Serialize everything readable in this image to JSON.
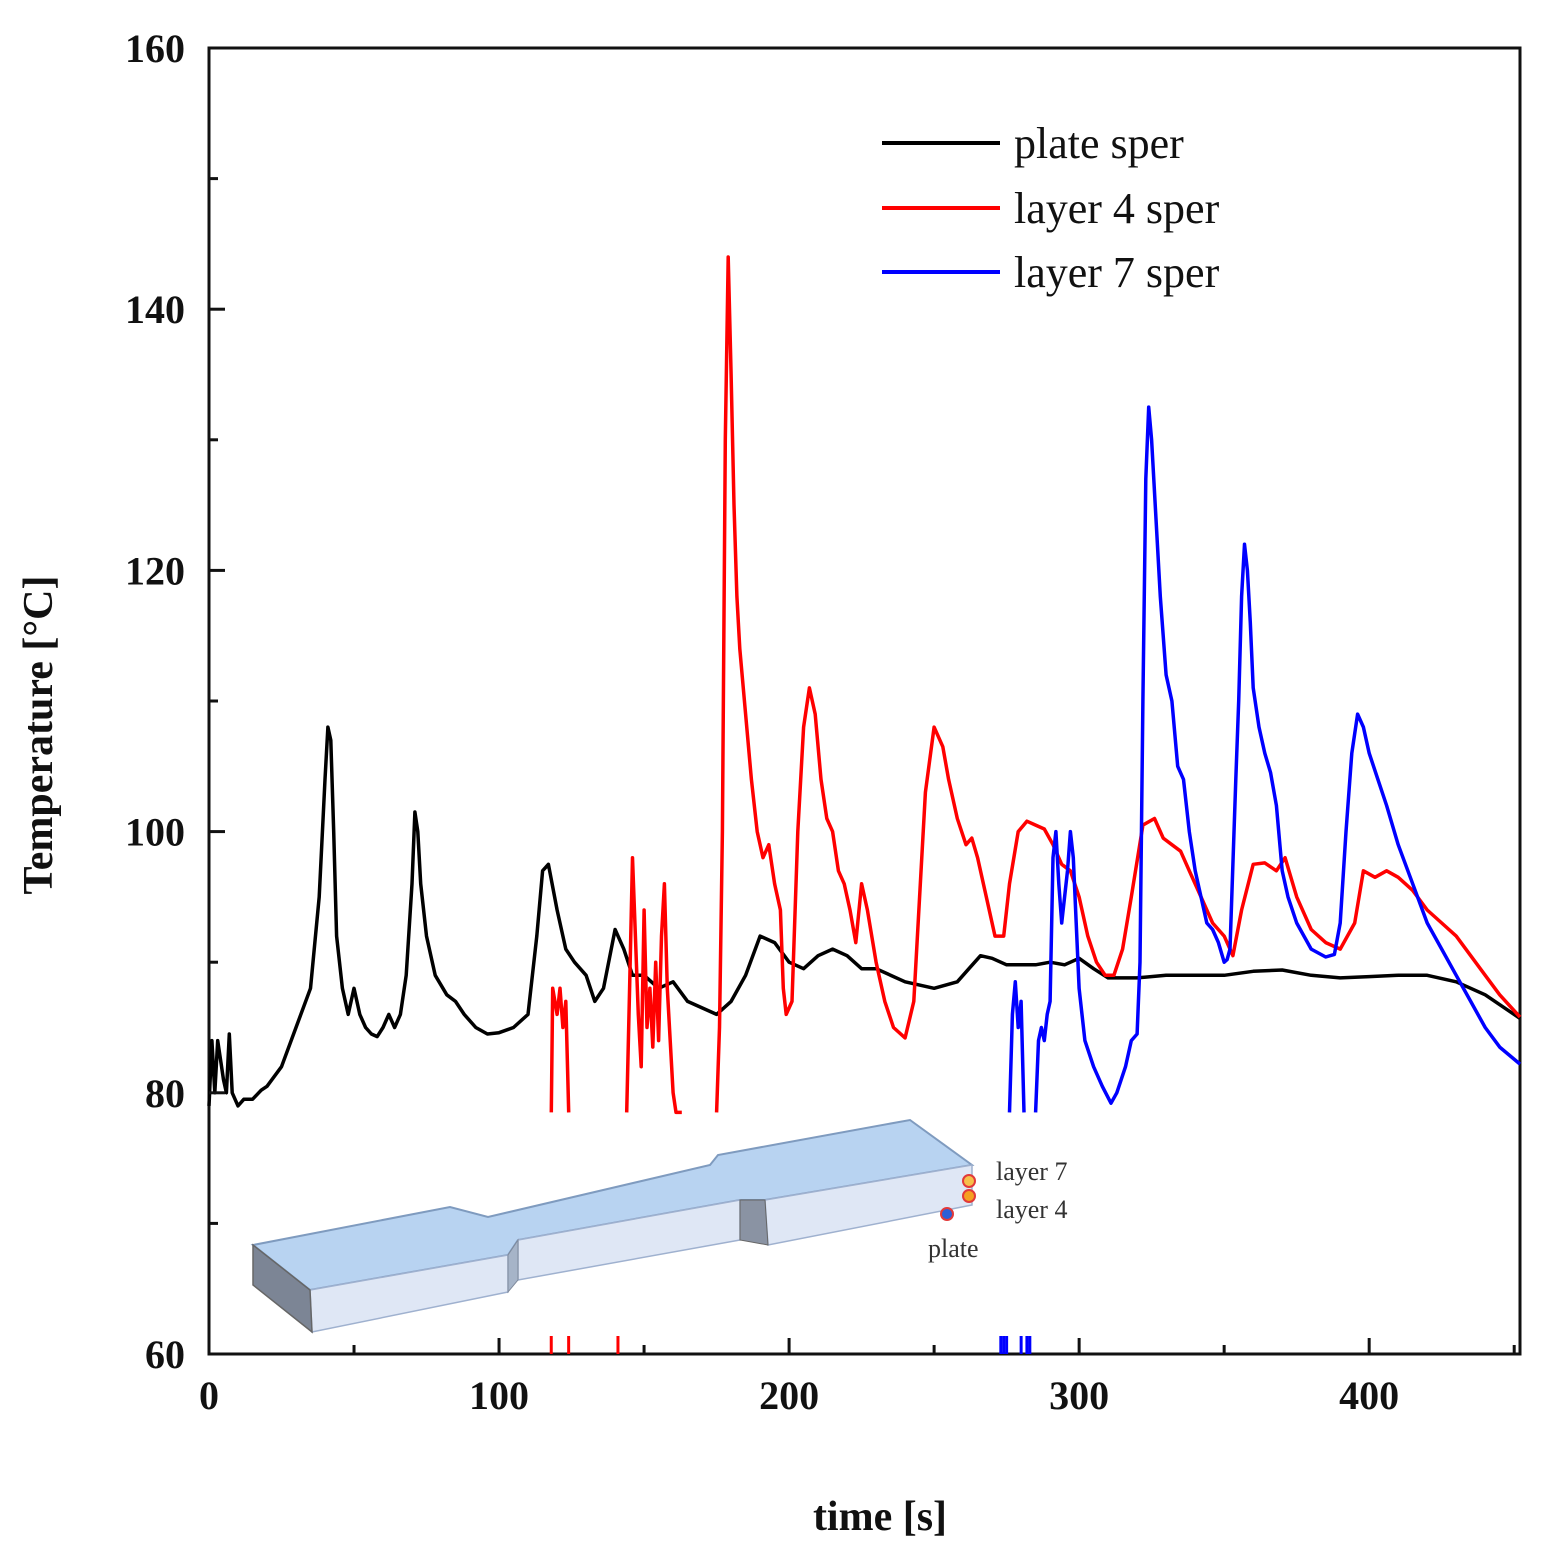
{
  "chart_data": {
    "type": "line",
    "title": "",
    "xlabel": "time [s]",
    "ylabel": "Temperature [°C]",
    "xlim": [
      0,
      452
    ],
    "ylim": [
      60,
      160
    ],
    "xticks": [
      0,
      100,
      200,
      300,
      400
    ],
    "yticks": [
      60,
      80,
      100,
      120,
      140,
      160
    ],
    "grid": false,
    "legend_position": "top-right",
    "series": [
      {
        "name": "plate sper",
        "color": "#000000",
        "x": [
          0,
          1,
          2,
          3,
          5,
          6,
          7,
          8,
          10,
          12,
          15,
          18,
          20,
          25,
          30,
          35,
          38,
          40,
          41,
          42,
          43,
          44,
          46,
          48,
          50,
          52,
          54,
          56,
          58,
          60,
          62,
          64,
          66,
          68,
          70,
          71,
          72,
          73,
          75,
          78,
          82,
          85,
          88,
          92,
          96,
          100,
          105,
          110,
          113,
          115,
          117,
          120,
          123,
          126,
          130,
          133,
          136,
          140,
          143,
          146,
          150,
          155,
          160,
          165,
          170,
          175,
          180,
          185,
          190,
          195,
          200,
          205,
          210,
          215,
          220,
          225,
          230,
          240,
          250,
          258,
          262,
          266,
          270,
          275,
          280,
          285,
          290,
          295,
          300,
          305,
          310,
          320,
          330,
          340,
          350,
          360,
          370,
          380,
          390,
          400,
          410,
          420,
          430,
          440,
          452
        ],
        "y": [
          79,
          84,
          80,
          84,
          81,
          80,
          84.5,
          80,
          79,
          79.5,
          79.5,
          80.2,
          80.5,
          82,
          85,
          88,
          95,
          104,
          108,
          107,
          100,
          92,
          88,
          86,
          88,
          86,
          85,
          84.5,
          84.3,
          85,
          86,
          85,
          86,
          89,
          96,
          101.5,
          100,
          96,
          92,
          89,
          87.5,
          87,
          86,
          85,
          84.5,
          84.6,
          85,
          86,
          92,
          97,
          97.5,
          94,
          91,
          90,
          89,
          87,
          88,
          92.5,
          91,
          89,
          89,
          88,
          88.5,
          87,
          86.5,
          86,
          87,
          89,
          92,
          91.5,
          90,
          89.5,
          90.5,
          91,
          90.5,
          89.5,
          89.5,
          88.5,
          88,
          88.5,
          89.5,
          90.5,
          90.3,
          89.8,
          89.8,
          89.8,
          90,
          89.8,
          90.3,
          89.5,
          88.8,
          88.8,
          89,
          89,
          89,
          89.3,
          89.4,
          89,
          88.8,
          88.9,
          89,
          89,
          88.5,
          87.5,
          85.7
        ]
      },
      {
        "name": "layer 4 sper",
        "color": "#ff0000",
        "segments": [
          {
            "x": [
              118,
              118.5,
              120,
              121,
              122,
              123,
              124
            ],
            "y": [
              78.5,
              88,
              86,
              88,
              85,
              87,
              78.5
            ]
          },
          {
            "x": [
              144,
              145,
              146,
              147,
              148,
              149,
              150,
              151,
              152,
              153,
              154,
              155,
              156,
              157,
              158,
              159,
              160,
              161,
              162,
              163
            ],
            "y": [
              78.5,
              88,
              98,
              92,
              86,
              82,
              94,
              85,
              88,
              83.5,
              90,
              84,
              92,
              96,
              88,
              84,
              80,
              78.5,
              78.5,
              78.5
            ]
          },
          {
            "x": [
              175,
              176,
              177,
              178,
              179,
              180,
              181,
              182,
              183,
              185,
              187,
              189,
              191,
              193,
              195,
              197,
              198,
              199,
              201,
              203,
              205,
              207,
              209,
              211,
              213,
              215,
              217,
              219,
              221,
              223,
              225,
              227,
              230,
              233,
              236,
              240,
              243,
              245,
              247,
              250,
              253,
              255,
              258,
              261,
              263,
              265,
              268,
              271,
              274,
              276,
              279,
              282,
              285,
              288,
              291,
              294,
              297,
              300,
              303,
              306,
              309,
              312,
              315,
              318,
              322,
              326,
              329,
              332,
              335,
              338,
              342,
              346,
              350,
              353,
              356,
              360,
              364,
              368,
              371,
              375,
              380,
              385,
              390,
              395,
              398,
              402,
              406,
              410,
              415,
              420,
              425,
              430,
              435,
              440,
              445,
              452
            ],
            "y": [
              78.5,
              85,
              100,
              130,
              144,
              135,
              125,
              118,
              114,
              109,
              104,
              100,
              98,
              99,
              96,
              94,
              88,
              86,
              87,
              100,
              108,
              111,
              109,
              104,
              101,
              100,
              97,
              96,
              94,
              91.5,
              96,
              94,
              90,
              87,
              85,
              84.2,
              87,
              95,
              103,
              108,
              106.5,
              104,
              101,
              99,
              99.5,
              98,
              95,
              92,
              92,
              96,
              100,
              100.8,
              100.5,
              100.2,
              99,
              97.5,
              97,
              95,
              92,
              90,
              89,
              89,
              91,
              95,
              100.5,
              101,
              99.5,
              99,
              98.5,
              97,
              95,
              93,
              92,
              90.5,
              94,
              97.5,
              97.6,
              97,
              98,
              95,
              92.5,
              91.5,
              91,
              93,
              97,
              96.5,
              97,
              96.5,
              95.5,
              94,
              93,
              92,
              90.5,
              89,
              87.5,
              85.8
            ]
          }
        ]
      },
      {
        "name": "layer 7 sper",
        "color": "#0000ff",
        "segments": [
          {
            "x": [
              276,
              277,
              278,
              279,
              280,
              281
            ],
            "y": [
              78.5,
              86,
              88.5,
              85,
              87,
              78.5
            ]
          },
          {
            "x": [
              285,
              286,
              287,
              288,
              289,
              290,
              291,
              292,
              293,
              294,
              295,
              296,
              297,
              298,
              299,
              300,
              302,
              305,
              308,
              311,
              313,
              316,
              318,
              320,
              321,
              322,
              323,
              324,
              325,
              326,
              328,
              330,
              332,
              334,
              336,
              338,
              340,
              342,
              344,
              346,
              348,
              350,
              351,
              352,
              354,
              355,
              356,
              357,
              358,
              359,
              360,
              362,
              364,
              366,
              368,
              370,
              372,
              375,
              380,
              385,
              388,
              390,
              392,
              394,
              396,
              398,
              400,
              403,
              406,
              410,
              415,
              420,
              425,
              430,
              435,
              440,
              445,
              452
            ],
            "y": [
              78.5,
              84,
              85,
              84,
              86,
              87,
              98,
              100,
              96,
              93,
              95,
              97,
              100,
              98,
              93,
              88,
              84,
              82,
              80.5,
              79.2,
              80,
              82,
              84,
              84.5,
              90,
              110,
              127,
              132.5,
              130,
              126,
              118,
              112,
              110,
              105,
              104,
              100,
              97,
              95,
              93,
              92.5,
              91.5,
              90,
              90.2,
              91,
              104,
              110,
              118,
              122,
              120,
              116,
              111,
              108,
              106,
              104.5,
              102,
              97,
              95,
              93,
              91,
              90.4,
              90.6,
              93,
              100,
              106,
              109,
              108,
              106,
              104,
              102,
              99,
              96,
              93,
              91,
              89,
              87,
              85,
              83.5,
              82.2
            ]
          }
        ],
        "rug_ticks": [
          273,
          274,
          275,
          280,
          282,
          283
        ]
      }
    ],
    "red_rug_ticks": [
      118,
      124,
      141
    ],
    "inset": {
      "description_labels": [
        "layer 7",
        "layer 4",
        "plate"
      ]
    }
  }
}
